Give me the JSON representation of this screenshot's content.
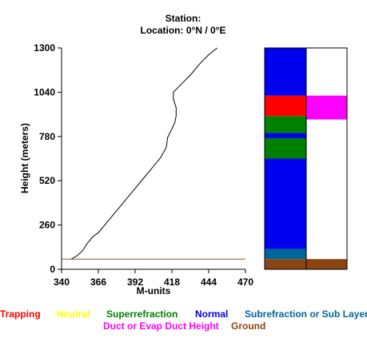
{
  "header": {
    "station_line": "Station:",
    "location_line": "Location:   0°N /   0°E"
  },
  "chart_data": {
    "type": "line",
    "xlabel": "M-units",
    "ylabel": "Height (meters)",
    "xlim": [
      340,
      470
    ],
    "ylim": [
      0,
      1300
    ],
    "xticks": [
      340,
      366,
      392,
      418,
      444,
      470
    ],
    "yticks": [
      0,
      260,
      520,
      780,
      1040,
      1300
    ],
    "ground_height": 60,
    "series": [
      {
        "color": "#000000",
        "points": [
          [
            347,
            60
          ],
          [
            351,
            80
          ],
          [
            355,
            110
          ],
          [
            358,
            150
          ],
          [
            362,
            190
          ],
          [
            366,
            215
          ],
          [
            370,
            255
          ],
          [
            374,
            295
          ],
          [
            380,
            355
          ],
          [
            386,
            415
          ],
          [
            392,
            475
          ],
          [
            398,
            535
          ],
          [
            404,
            595
          ],
          [
            410,
            655
          ],
          [
            414,
            715
          ],
          [
            415,
            775
          ],
          [
            418,
            825
          ],
          [
            420,
            860
          ],
          [
            421,
            900
          ],
          [
            421,
            950
          ],
          [
            419,
            1000
          ],
          [
            419,
            1040
          ],
          [
            425,
            1090
          ],
          [
            432,
            1150
          ],
          [
            438,
            1210
          ],
          [
            444,
            1260
          ],
          [
            450,
            1300
          ]
        ]
      }
    ],
    "layer_bars": [
      {
        "column": "left",
        "segments": [
          {
            "from": 0,
            "to": 60,
            "category": "ground"
          },
          {
            "from": 60,
            "to": 120,
            "category": "subrefraction"
          },
          {
            "from": 120,
            "to": 650,
            "category": "normal"
          },
          {
            "from": 650,
            "to": 770,
            "category": "superrefraction"
          },
          {
            "from": 770,
            "to": 800,
            "category": "normal"
          },
          {
            "from": 800,
            "to": 900,
            "category": "superrefraction"
          },
          {
            "from": 900,
            "to": 1020,
            "category": "trapping"
          },
          {
            "from": 1020,
            "to": 1300,
            "category": "normal"
          }
        ]
      },
      {
        "column": "right",
        "segments": [
          {
            "from": 0,
            "to": 60,
            "category": "ground"
          },
          {
            "from": 880,
            "to": 1020,
            "category": "duct"
          }
        ]
      }
    ],
    "categories": {
      "trapping": {
        "label": "Trapping",
        "color": "#ff0000"
      },
      "neutral": {
        "label": "Neutral",
        "color": "#ffff00"
      },
      "superrefraction": {
        "label": "Superrefraction",
        "color": "#008000"
      },
      "normal": {
        "label": "Normal",
        "color": "#0000ee"
      },
      "subrefraction": {
        "label": "Subrefraction or Sub Layer",
        "color": "#006699"
      },
      "duct": {
        "label": "Duct or Evap Duct Height",
        "color": "#ff00ff"
      },
      "ground": {
        "label": "Ground",
        "color": "#8b4513"
      }
    },
    "ground_line_color": "#8b5a2b"
  }
}
